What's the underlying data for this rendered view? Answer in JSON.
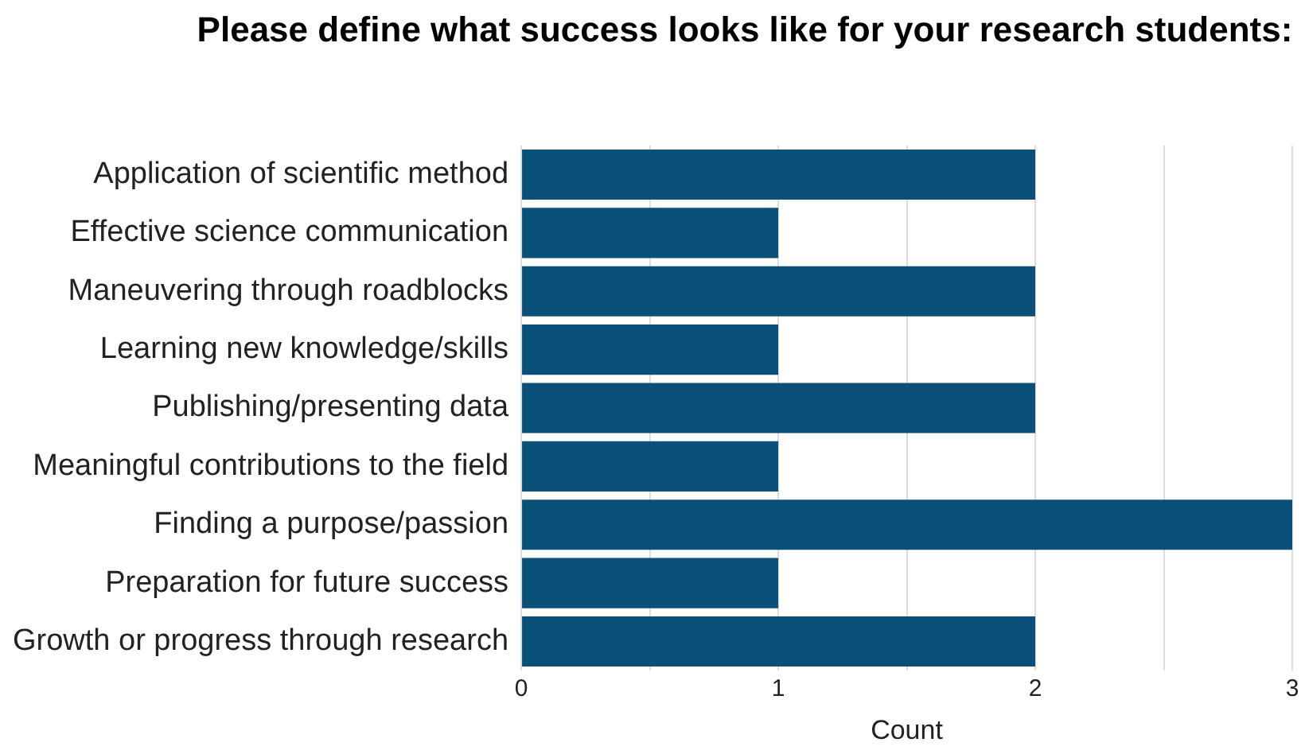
{
  "chart_data": {
    "type": "bar",
    "orientation": "horizontal",
    "title": "Please define what success looks like for your research students:",
    "xlabel": "Count",
    "categories": [
      "Application of scientific method",
      "Effective science communication",
      "Maneuvering through roadblocks",
      "Learning new knowledge/skills",
      "Publishing/presenting data",
      "Meaningful contributions to the field",
      "Finding a purpose/passion",
      "Preparation for future success",
      "Growth or progress through research"
    ],
    "values": [
      2,
      1,
      2,
      1,
      2,
      1,
      3,
      1,
      2
    ],
    "color": "#0b5079",
    "xlim": [
      0,
      3
    ],
    "xticks": [
      0,
      {
        "value": 0.5,
        "label": null
      },
      1,
      {
        "value": 1.5,
        "label": null
      },
      2,
      {
        "value": 2.5,
        "label": null
      },
      3
    ],
    "grid": "x",
    "legend": false
  }
}
